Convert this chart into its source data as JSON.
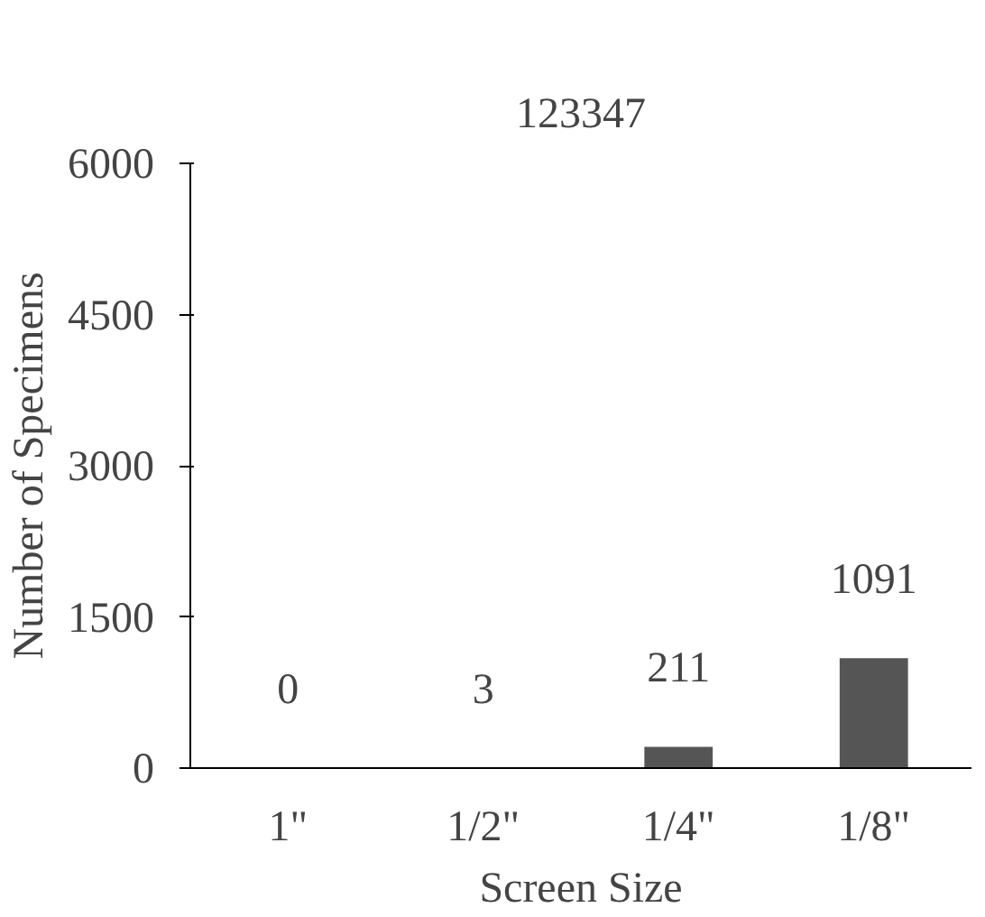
{
  "chart_data": {
    "type": "bar",
    "title": "123347",
    "xlabel": "Screen Size",
    "ylabel": "Number of Specimens",
    "categories": [
      "1\"",
      "1/2\"",
      "1/4\"",
      "1/8\""
    ],
    "values": [
      0,
      3,
      211,
      1091
    ],
    "color": "#555555",
    "ylim": [
      0,
      6000
    ],
    "yticks": [
      0,
      1500,
      3000,
      4500,
      6000
    ],
    "data_labels": true,
    "grid": false
  }
}
